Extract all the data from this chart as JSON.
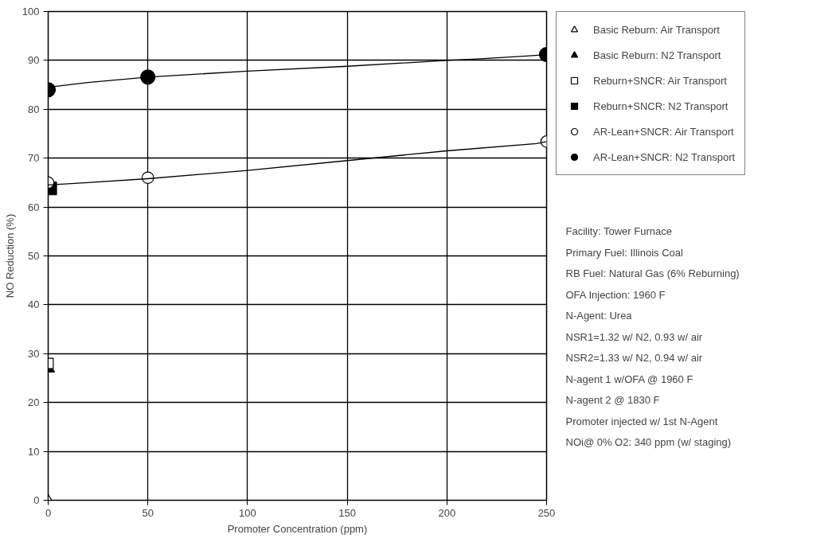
{
  "chart_data": {
    "type": "scatter",
    "xlabel": "Promoter Concentration (ppm)",
    "ylabel": "NO Reduction (%)",
    "xlim": [
      0,
      250
    ],
    "xticks": [
      0,
      50,
      100,
      150,
      200,
      250
    ],
    "ylim": [
      0,
      100
    ],
    "yticks": [
      0,
      10,
      20,
      30,
      40,
      50,
      60,
      70,
      80,
      90,
      100
    ],
    "grid": true,
    "legend": "top right",
    "series": [
      {
        "name": "Basic Reburn: Air Transport",
        "marker": "triangle",
        "color": "#ffffff",
        "x": [
          0
        ],
        "values": [
          0
        ]
      },
      {
        "name": "Basic Reburn: N2 Transport",
        "marker": "triangle",
        "color": "#000000",
        "x": [
          0
        ],
        "values": [
          27
        ]
      },
      {
        "name": "Reburn+SNCR: Air Transport",
        "marker": "square",
        "color": "#ffffff",
        "x": [
          0
        ],
        "values": [
          28
        ]
      },
      {
        "name": "Reburn+SNCR: N2 Transport",
        "marker": "square",
        "color": "#000000",
        "x": [
          1
        ],
        "values": [
          63.8
        ]
      },
      {
        "name": "AR-Lean+SNCR: Air Transport",
        "marker": "circle",
        "color": "#ffffff",
        "x": [
          0,
          50,
          250
        ],
        "values": [
          65,
          66,
          73.4
        ]
      },
      {
        "name": "AR-Lean+SNCR: N2 Transport",
        "marker": "circle",
        "color": "#000000",
        "x": [
          0,
          50,
          250
        ],
        "values": [
          84,
          86.6,
          91.2
        ]
      },
      {
        "type": "line",
        "color": "#000000",
        "x": [
          0,
          20,
          50,
          100,
          150,
          200,
          215,
          240,
          250
        ],
        "values": [
          84.5,
          85.5,
          86.6,
          87.8,
          88.8,
          90,
          90.3,
          90.9,
          91.2
        ]
      },
      {
        "type": "line",
        "color": "#000000",
        "x": [
          0,
          20,
          50,
          100,
          150,
          200,
          245,
          250
        ],
        "values": [
          64.5,
          65,
          65.8,
          67.5,
          69.5,
          71.5,
          73,
          73.4
        ]
      }
    ],
    "annotations": [
      "Facility: Tower Furnace",
      "Primary Fuel: Illinois Coal",
      "RB Fuel: Natural Gas (6% Reburning)",
      "OFA Injection: 1960 F",
      "N-Agent: Urea",
      "NSR1=1.32 w/ N2, 0.93 w/ air",
      "NSR2=1.33 w/ N2, 0.94 w/ air",
      "N-agent 1 w/OFA @ 1960 F",
      "N-agent 2 @ 1830 F",
      "Promoter injected w/ 1st N-Agent",
      "NOi@ 0% O2: 340 ppm (w/ staging)"
    ]
  }
}
